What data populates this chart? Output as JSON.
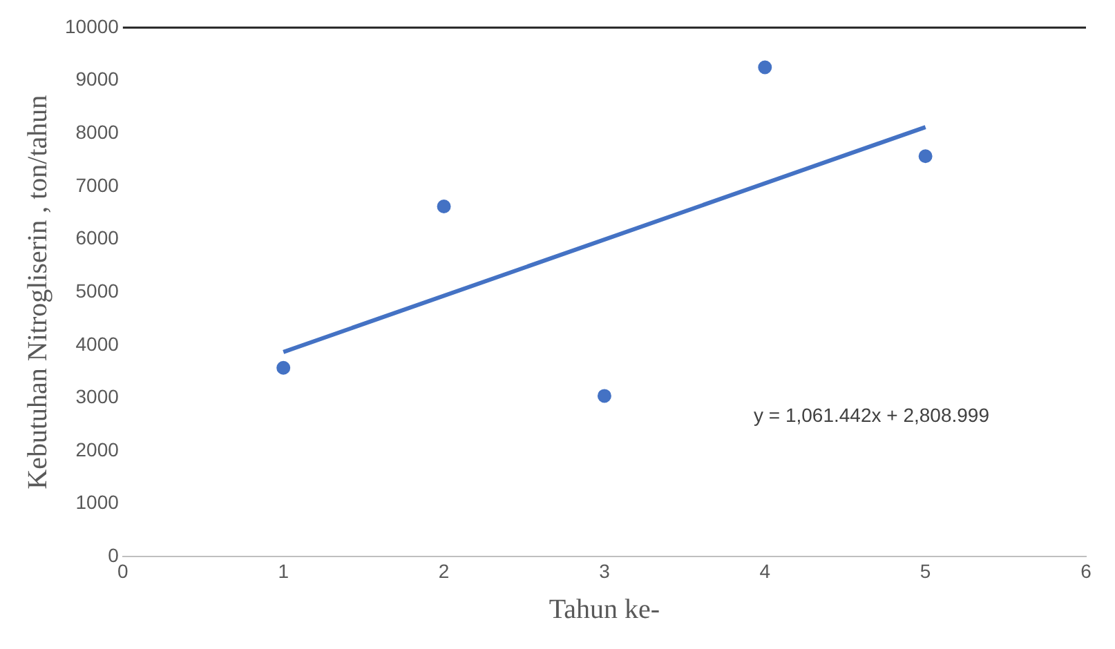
{
  "chart_data": {
    "type": "scatter",
    "xlabel": "Tahun ke-",
    "ylabel": "Kebutuhan Nitrogliserin , ton/tahun",
    "series": [
      {
        "color": "#4472c4",
        "marker": "circle",
        "x": [
          1,
          2,
          3,
          4,
          5
        ],
        "values": [
          3570,
          6620,
          3040,
          9250,
          7570
        ]
      },
      {
        "type": "line",
        "color": "#4472c4",
        "marker": "none",
        "x": [
          1,
          5
        ],
        "values": [
          3870,
          8120
        ]
      }
    ],
    "xlim": [
      0,
      6
    ],
    "xticks": [
      0,
      1,
      2,
      3,
      4,
      5,
      6
    ],
    "ylim": [
      0,
      10000
    ],
    "yticks": [
      0,
      1000,
      2000,
      3000,
      4000,
      5000,
      6000,
      7000,
      8000,
      9000,
      10000
    ],
    "grid": false,
    "legend": false,
    "annotations": [
      "y = 1,061.442x + 2,808.999"
    ]
  }
}
